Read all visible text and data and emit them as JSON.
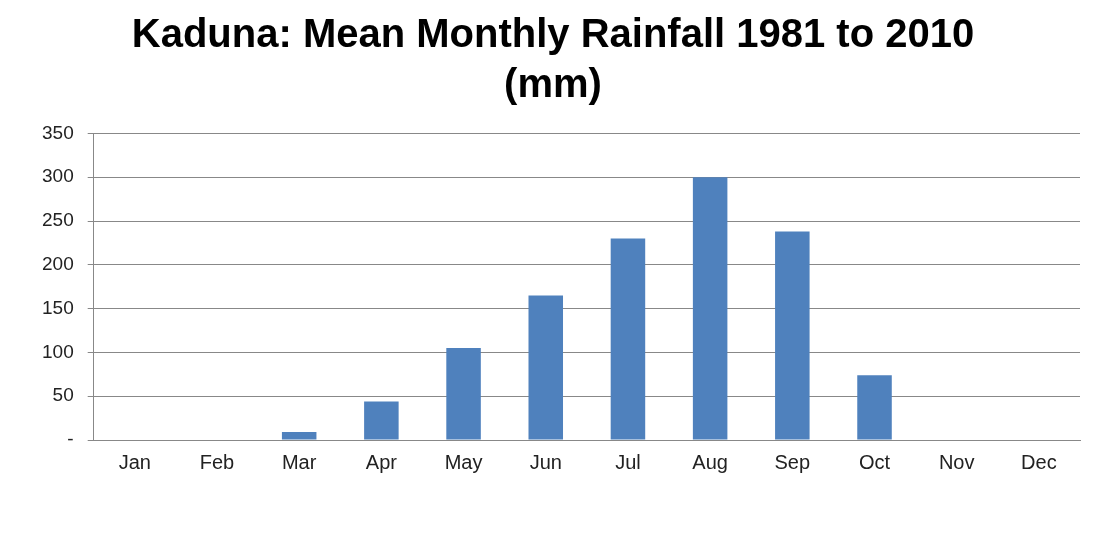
{
  "chart_data": {
    "type": "bar",
    "title": "Kaduna: Mean Monthly Rainfall 1981 to 2010 (mm)",
    "categories": [
      "Jan",
      "Feb",
      "Mar",
      "Apr",
      "May",
      "Jun",
      "Jul",
      "Aug",
      "Sep",
      "Oct",
      "Nov",
      "Dec"
    ],
    "values": [
      0,
      0,
      9,
      44,
      105,
      165,
      230,
      300,
      238,
      74,
      0,
      0
    ],
    "color": "#4f81bd",
    "ylim": [
      0,
      350
    ],
    "yticks": [
      {
        "value": 0,
        "label": "-"
      },
      50,
      100,
      150,
      200,
      250,
      300,
      350
    ],
    "grid": "y"
  }
}
